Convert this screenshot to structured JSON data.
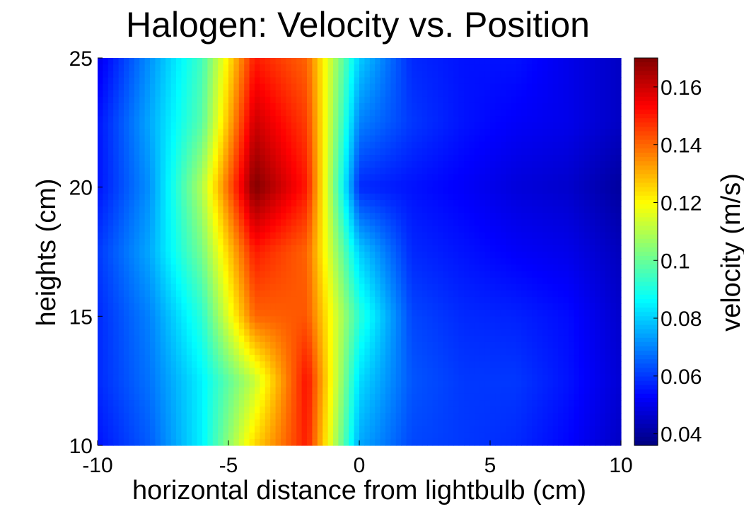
{
  "chart_data": {
    "type": "heatmap",
    "title": "Halogen: Velocity vs. Position",
    "xlabel": "horizontal distance from lightbulb (cm)",
    "ylabel": "heights (cm)",
    "xlim": [
      -10,
      10
    ],
    "ylim": [
      10,
      25
    ],
    "x_ticks": [
      -10,
      -5,
      0,
      5,
      10
    ],
    "y_ticks": [
      10,
      15,
      20,
      25
    ],
    "x": [
      -10,
      -8,
      -6,
      -4,
      -2,
      0,
      2,
      4,
      6,
      8,
      10
    ],
    "y": [
      10,
      12.5,
      15,
      17.5,
      20,
      22.5,
      25
    ],
    "z": [
      [
        0.055,
        0.065,
        0.085,
        0.125,
        0.15,
        0.075,
        0.062,
        0.06,
        0.058,
        0.053,
        0.045
      ],
      [
        0.058,
        0.068,
        0.085,
        0.112,
        0.152,
        0.082,
        0.064,
        0.06,
        0.06,
        0.055,
        0.047
      ],
      [
        0.058,
        0.07,
        0.092,
        0.14,
        0.142,
        0.092,
        0.062,
        0.058,
        0.057,
        0.054,
        0.046
      ],
      [
        0.06,
        0.075,
        0.102,
        0.15,
        0.14,
        0.08,
        0.058,
        0.055,
        0.052,
        0.05,
        0.044
      ],
      [
        0.055,
        0.072,
        0.11,
        0.17,
        0.15,
        0.058,
        0.055,
        0.052,
        0.048,
        0.046,
        0.04
      ],
      [
        0.055,
        0.075,
        0.098,
        0.16,
        0.145,
        0.07,
        0.06,
        0.055,
        0.052,
        0.05,
        0.045
      ],
      [
        0.05,
        0.072,
        0.095,
        0.15,
        0.14,
        0.08,
        0.058,
        0.055,
        0.055,
        0.05,
        0.045
      ]
    ],
    "colorbar": {
      "label": "velocity (m/s)",
      "range": [
        0.036,
        0.17
      ],
      "ticks": [
        0.04,
        0.06,
        0.08,
        0.1,
        0.12,
        0.14,
        0.16
      ],
      "colormap": "jet"
    }
  }
}
